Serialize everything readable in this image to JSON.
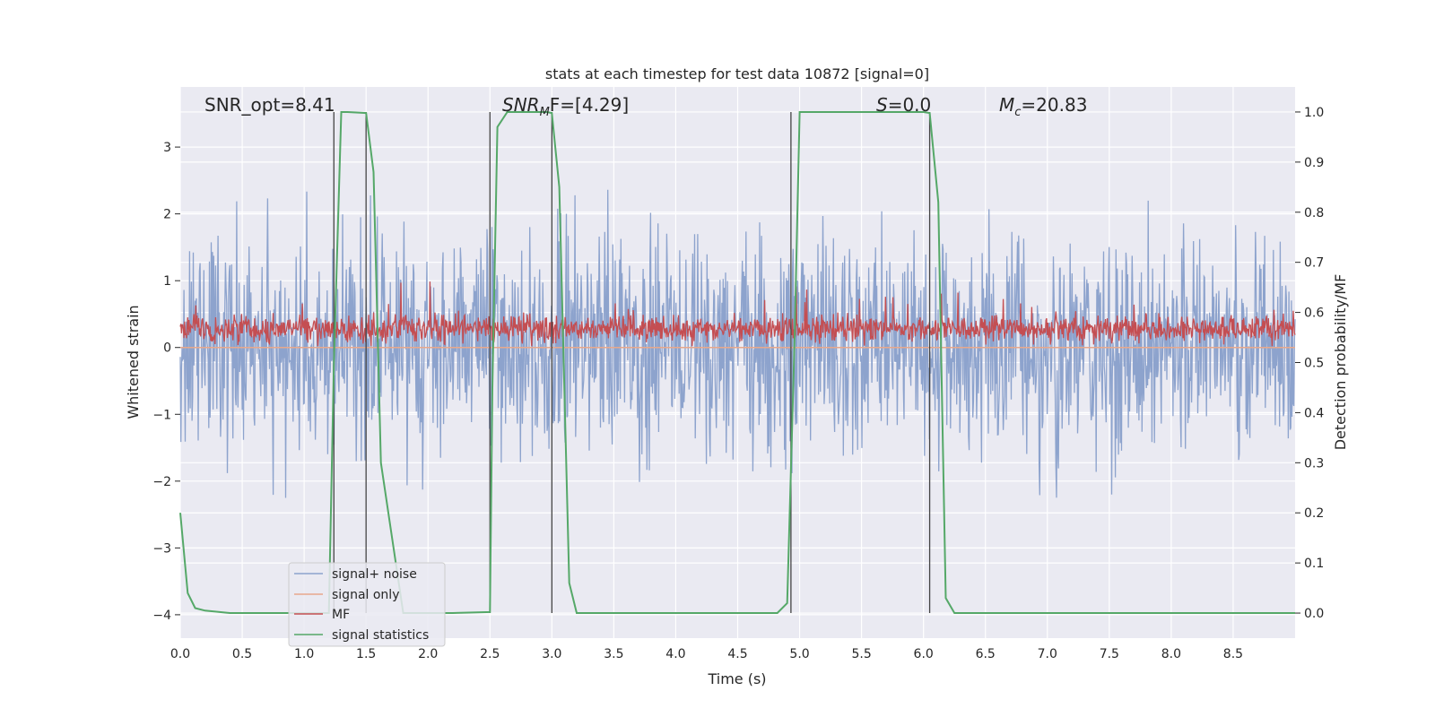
{
  "chart_data": {
    "type": "line",
    "title": "stats at each timestep for test data 10872 [signal=0]",
    "xlabel": "Time (s)",
    "ylabel": "Whitened strain",
    "ylabel_right": "Detection probability/MF",
    "xlim": [
      0.0,
      9.0
    ],
    "ylim": [
      -4.35,
      3.9
    ],
    "ylim_right": [
      -0.05,
      1.05
    ],
    "xticks": [
      "0.0",
      "0.5",
      "1.0",
      "1.5",
      "2.0",
      "2.5",
      "3.0",
      "3.5",
      "4.0",
      "4.5",
      "5.0",
      "5.5",
      "6.0",
      "6.5",
      "7.0",
      "7.5",
      "8.0",
      "8.5"
    ],
    "yticks": [
      "3",
      "2",
      "1",
      "0",
      "−1",
      "−2",
      "−3",
      "−4"
    ],
    "yticks_right": [
      "1.0",
      "0.9",
      "0.8",
      "0.7",
      "0.6",
      "0.5",
      "0.4",
      "0.3",
      "0.2",
      "0.1",
      "0.0"
    ],
    "grid": true,
    "legend_position": "lower-left",
    "annotations": {
      "snr_opt": "SNR_opt=8.41",
      "snr_mf_main": "SNR",
      "snr_mf_sub": "M",
      "snr_mf_rest": "F=[4.29]",
      "s_main": "S",
      "s_rest": "=0.0",
      "mc_main": "M",
      "mc_sub": "c",
      "mc_rest": "=20.83"
    },
    "series": [
      {
        "name": "signal+ noise",
        "color": "#8da3cd",
        "axis": "left",
        "description_values": {
          "amplitude_envelope": [
            -3.6,
            3.5
          ],
          "samples": 1800,
          "seed": 10872
        }
      },
      {
        "name": "signal only",
        "color": "#e8a88c",
        "axis": "left",
        "values_constant": 0.0
      },
      {
        "name": "MF",
        "color": "#c44e52",
        "axis": "left",
        "description_values": {
          "range": [
            0.0,
            1.0
          ],
          "samples": 1800
        }
      },
      {
        "name": "signal statistics",
        "color": "#55a868",
        "axis": "right",
        "x": [
          0.0,
          0.06,
          0.12,
          0.2,
          0.4,
          0.6,
          0.9,
          1.2,
          1.24,
          1.3,
          1.35,
          1.5,
          1.56,
          1.62,
          1.8,
          2.2,
          2.5,
          2.52,
          2.56,
          2.64,
          2.96,
          3.0,
          3.06,
          3.14,
          3.2,
          3.3,
          3.6,
          4.0,
          4.4,
          4.82,
          4.9,
          4.96,
          5.0,
          5.3,
          5.6,
          6.0,
          6.05,
          6.12,
          6.18,
          6.25,
          6.5,
          7.0,
          7.5,
          8.0,
          8.5,
          9.0
        ],
        "values": [
          0.2,
          0.04,
          0.01,
          0.005,
          0.0,
          0.0,
          0.0,
          0.0,
          0.5,
          1.0,
          1.0,
          0.998,
          0.88,
          0.3,
          0.0,
          0.0,
          0.002,
          0.45,
          0.97,
          1.0,
          1.0,
          0.998,
          0.85,
          0.06,
          0.0,
          0.0,
          0.0,
          0.0,
          0.0,
          0.0,
          0.02,
          0.55,
          1.0,
          1.0,
          1.0,
          1.0,
          0.998,
          0.82,
          0.03,
          0.0,
          0.0,
          0.0,
          0.0,
          0.0,
          0.0,
          0.0
        ]
      }
    ],
    "vertical_markers": [
      1.24,
      1.5,
      2.5,
      3.0,
      4.93,
      6.05
    ]
  }
}
